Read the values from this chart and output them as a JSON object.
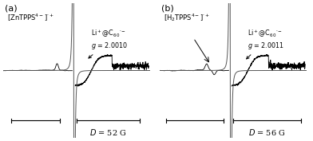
{
  "figsize": [
    3.92,
    1.77
  ],
  "dpi": 100,
  "bg_color": "#ffffff",
  "panel_a": {
    "label": "(a)",
    "radical_cation_label": "[ZnTPPS$^{4-}$]$^{\\cdot+}$",
    "anion_label": "Li$^+$@C$_{60}$$^{\\cdot-}$",
    "g_value": "$g$ = 2.0010",
    "D_label": "$D$ = 52 G"
  },
  "panel_b": {
    "label": "(b)",
    "radical_cation_label": "[H$_2$TPPS$^{4-}$]$^{\\cdot+}$",
    "anion_label": "Li$^+$@C$_{60}$$^{\\cdot-}$",
    "g_value": "$g$ = 2.0011",
    "D_label": "$D$ = 56 G"
  }
}
